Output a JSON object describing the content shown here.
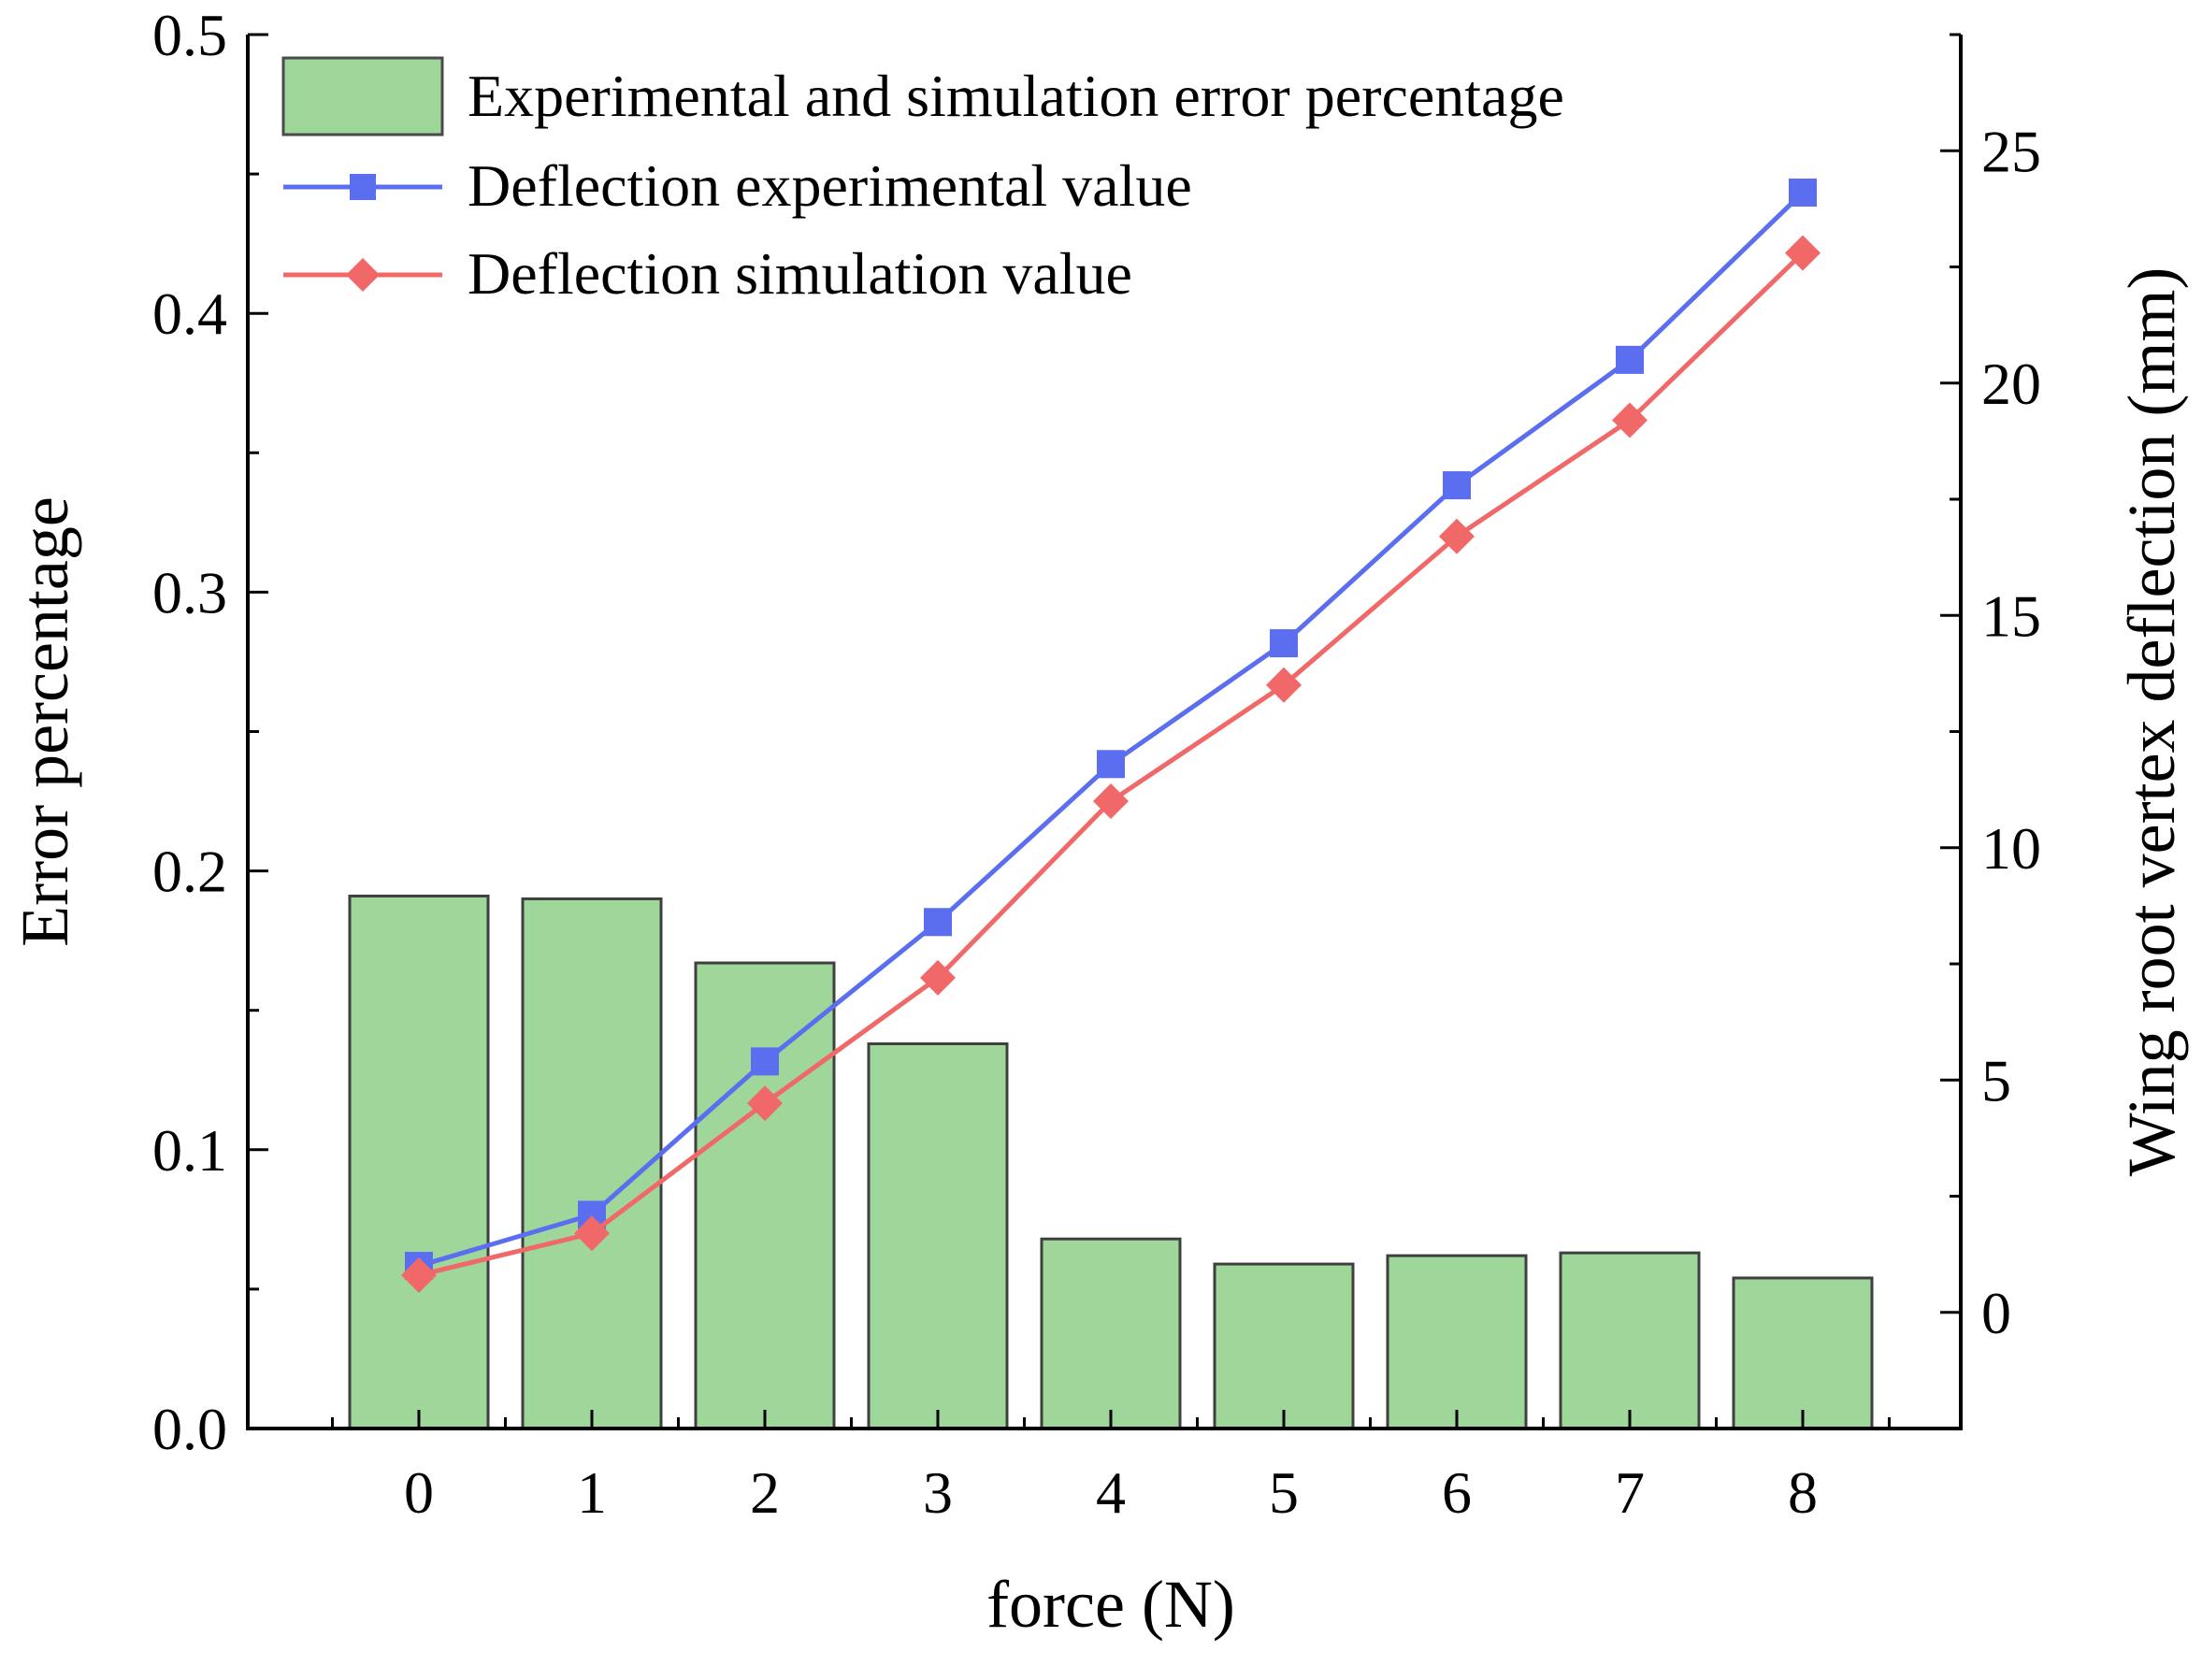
{
  "chart_data": {
    "type": "bar+line",
    "x": {
      "label": "force (N)",
      "categories": [
        "0",
        "1",
        "2",
        "3",
        "4",
        "5",
        "6",
        "7",
        "8"
      ]
    },
    "y_left": {
      "label": "Error percentage",
      "lim": [
        0.0,
        0.5
      ],
      "ticks": [
        "0.0",
        "0.1",
        "0.2",
        "0.3",
        "0.4",
        "0.5"
      ]
    },
    "y_right": {
      "label": "Wing root vertex deflection (mm)",
      "lim": [
        -2.5,
        27.5
      ],
      "ticks": [
        "0",
        "5",
        "10",
        "15",
        "20",
        "25"
      ]
    },
    "series": [
      {
        "name": "Experimental and simulation error percentage",
        "type": "bar",
        "axis": "left",
        "color": "#9fd79b",
        "values": [
          0.191,
          0.19,
          0.167,
          0.138,
          0.068,
          0.059,
          0.062,
          0.063,
          0.054
        ]
      },
      {
        "name": "Deflection experimental value",
        "type": "line",
        "marker": "square",
        "axis": "right",
        "color": "#5b6ef0",
        "values": [
          1.0,
          2.1,
          5.4,
          8.4,
          11.8,
          14.4,
          17.8,
          20.5,
          24.1
        ]
      },
      {
        "name": "Deflection simulation value",
        "type": "line",
        "marker": "diamond",
        "axis": "right",
        "color": "#f06868",
        "values": [
          0.8,
          1.7,
          4.5,
          7.2,
          11.0,
          13.5,
          16.7,
          19.2,
          22.8
        ]
      }
    ],
    "legend_position": "top-left"
  }
}
